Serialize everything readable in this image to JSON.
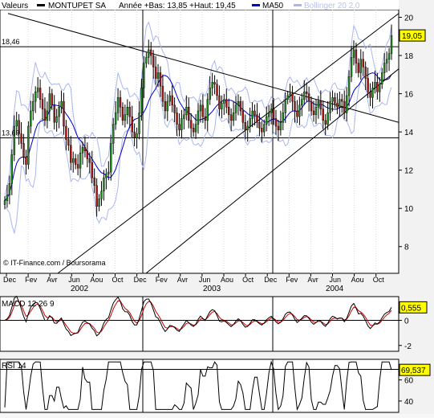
{
  "header": {
    "prefix": "Valeurs",
    "stock": "MONTUPET SA",
    "range": "Année +Bas: 13,85 +Haut: 19,45",
    "ma_label": "MA50",
    "boll_label": "Bollinger 20 2.0"
  },
  "credit": "© IT-Finance.com / Boursorama",
  "colors": {
    "up": "#1f8c1f",
    "down": "#a61a1a",
    "ma": "#0000cc",
    "boll": "#a9b7f0",
    "trend": "#000000",
    "macd_signal": "#cc0000",
    "highlight": "#ffff00"
  },
  "chart_data": [
    {
      "type": "candlestick",
      "title": "MONTUPET SA",
      "ylim": [
        6.6,
        20.4
      ],
      "y_ticks": [
        "20",
        "18",
        "16",
        "14",
        "12",
        "10",
        "8"
      ],
      "x_month_labels": [
        "Dec",
        "Fev",
        "Avr",
        "Jun",
        "Aou",
        "Oct",
        "Dec",
        "Fev",
        "Avr",
        "Jun",
        "Aou",
        "Oct",
        "Dec",
        "Fev",
        "Avr",
        "Jun",
        "Aou",
        "Oct"
      ],
      "x_year_labels": [
        "2002",
        "2003",
        "2004"
      ],
      "last_value": "19,05",
      "level_labels": [
        {
          "label": "18,46",
          "value": 18.46
        },
        {
          "label": "13,69",
          "value": 13.69
        }
      ],
      "weekly_close": [
        10.4,
        10.7,
        11.3,
        12.8,
        14.3,
        14.6,
        13.9,
        13.4,
        12.7,
        12.3,
        14.3,
        15.1,
        15.6,
        16.1,
        16.3,
        15.7,
        15.2,
        14.6,
        15.1,
        16.0,
        15.4,
        14.5,
        14.8,
        15.3,
        15.6,
        14.3,
        13.6,
        13.3,
        12.4,
        12.6,
        12.3,
        12.1,
        12.9,
        13.2,
        13.0,
        12.6,
        12.4,
        11.6,
        11.2,
        10.1,
        10.5,
        10.9,
        11.6,
        11.8,
        11.9,
        13.4,
        14.4,
        15.0,
        15.8,
        15.3,
        14.6,
        14.9,
        15.3,
        14.8,
        14.0,
        13.7,
        13.9,
        15.0,
        16.3,
        17.6,
        17.9,
        18.3,
        18.0,
        17.4,
        16.8,
        17.1,
        16.4,
        15.6,
        15.1,
        15.6,
        15.9,
        15.4,
        15.0,
        14.4,
        14.1,
        14.7,
        14.9,
        15.3,
        14.6,
        14.2,
        14.0,
        14.4,
        15.1,
        15.4,
        14.8,
        14.6,
        15.7,
        16.3,
        16.6,
        16.5,
        15.9,
        15.2,
        15.5,
        15.7,
        15.3,
        14.9,
        14.6,
        15.0,
        15.4,
        15.6,
        15.1,
        14.5,
        14.1,
        14.3,
        14.7,
        15.1,
        14.9,
        14.5,
        14.2,
        14.0,
        14.4,
        14.8,
        15.0,
        15.2,
        14.7,
        14.3,
        14.1,
        14.5,
        15.0,
        15.7,
        15.9,
        16.0,
        15.6,
        15.1,
        14.8,
        15.4,
        15.7,
        16.1,
        16.0,
        15.6,
        15.1,
        14.9,
        15.3,
        15.6,
        15.2,
        14.6,
        14.4,
        15.0,
        15.6,
        15.8,
        15.5,
        15.3,
        15.7,
        15.6,
        15.0,
        15.9,
        16.9,
        17.9,
        18.3,
        17.6,
        17.1,
        17.8,
        17.4,
        16.8,
        16.1,
        15.8,
        16.3,
        16.6,
        16.1,
        16.5,
        17.1,
        17.6,
        17.8,
        18.1,
        19.05
      ]
    },
    {
      "type": "line",
      "title": "MACD 12 26 9",
      "ylim": [
        -2.4,
        1.7
      ],
      "y_ticks": [
        "0",
        "-2"
      ],
      "last_value": "0,555",
      "series_lengths": "auto"
    },
    {
      "type": "line",
      "title": "RSI 14",
      "ylim": [
        30,
        78
      ],
      "y_ticks": [
        "60",
        "40"
      ],
      "last_value": "69,537"
    }
  ]
}
